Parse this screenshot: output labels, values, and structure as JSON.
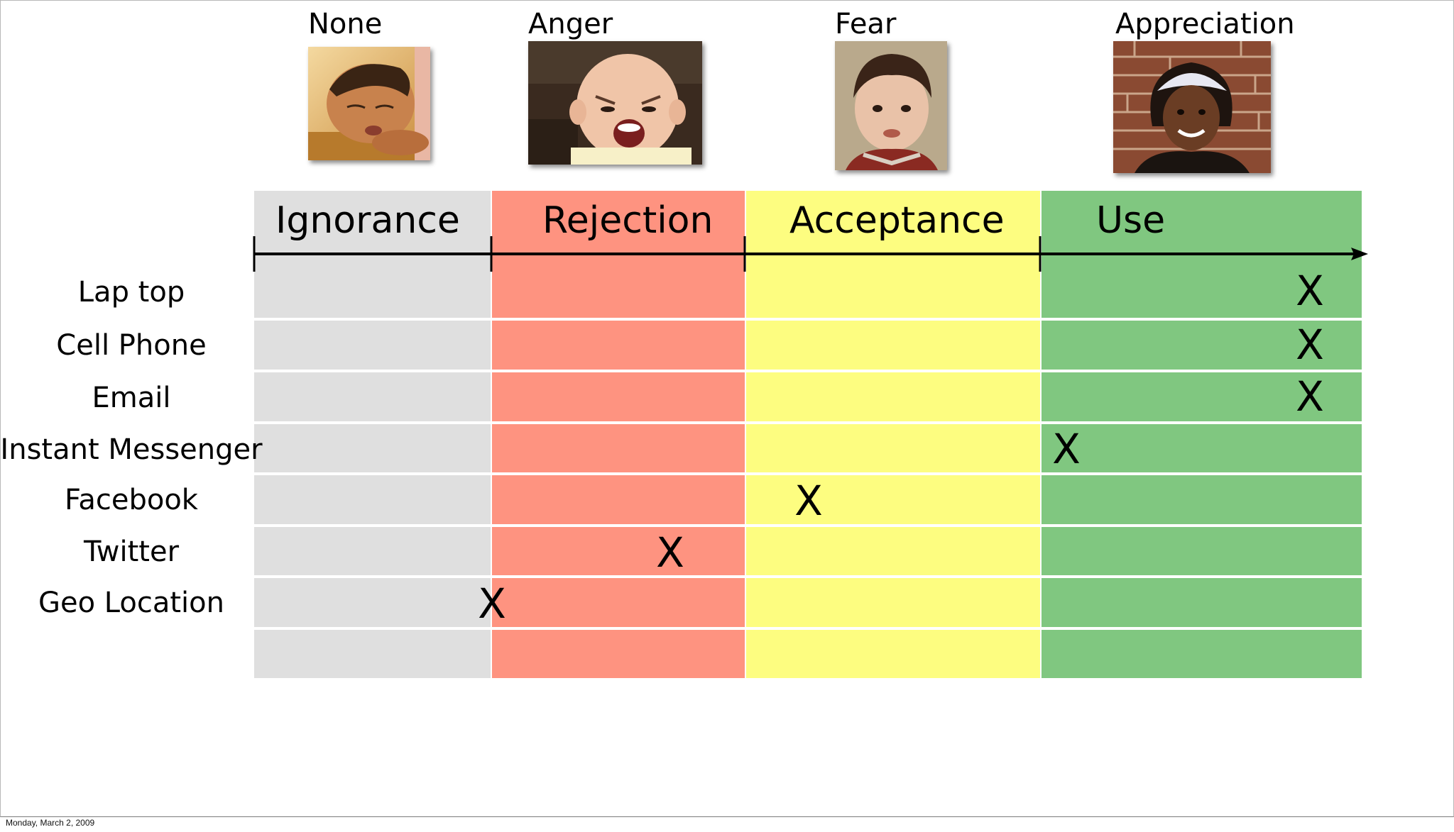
{
  "emotions": [
    {
      "label": "None",
      "photo_icon": "sleeping-child-photo"
    },
    {
      "label": "Anger",
      "photo_icon": "screaming-baby-photo"
    },
    {
      "label": "Fear",
      "photo_icon": "worried-boy-photo"
    },
    {
      "label": "Appreciation",
      "photo_icon": "smiling-girl-photo"
    }
  ],
  "stages": [
    {
      "label": "Ignorance",
      "color": "#dfdfdf"
    },
    {
      "label": "Rejection",
      "color": "#fe9380"
    },
    {
      "label": "Acceptance",
      "color": "#fdfd80"
    },
    {
      "label": "Use",
      "color": "#80c780"
    }
  ],
  "technologies": [
    {
      "label": "Lap top",
      "mark": "X",
      "stage": "Use"
    },
    {
      "label": "Cell Phone",
      "mark": "X",
      "stage": "Use"
    },
    {
      "label": "Email",
      "mark": "X",
      "stage": "Use"
    },
    {
      "label": "Instant Messenger",
      "mark": "X",
      "stage": "Use"
    },
    {
      "label": "Facebook",
      "mark": "X",
      "stage": "Acceptance"
    },
    {
      "label": "Twitter",
      "mark": "X",
      "stage": "Rejection"
    },
    {
      "label": "Geo Location",
      "mark": "X",
      "stage": "Ignorance"
    }
  ],
  "footer": {
    "date": "Monday, March 2, 2009"
  }
}
